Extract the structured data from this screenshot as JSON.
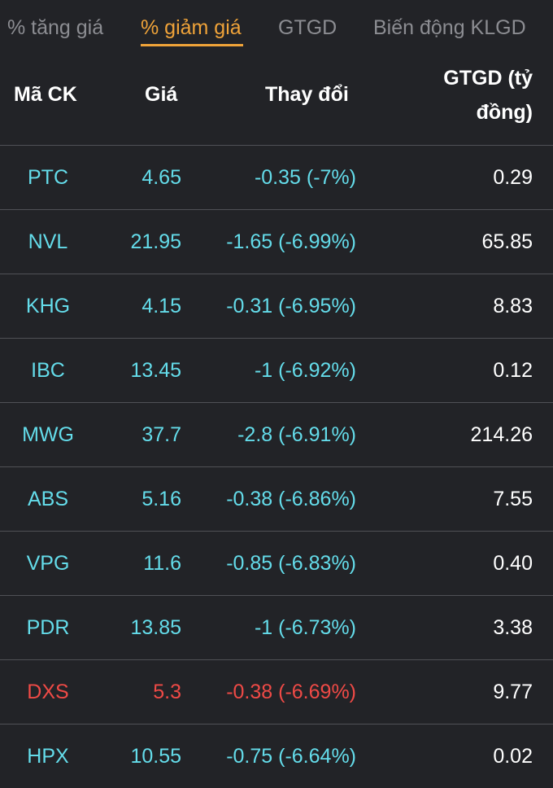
{
  "tabs": [
    {
      "label": "% tăng giá",
      "active": false
    },
    {
      "label": "% giảm giá",
      "active": true
    },
    {
      "label": "GTGD",
      "active": false
    },
    {
      "label": "Biến động KLGD",
      "active": false
    }
  ],
  "columns": {
    "symbol": "Mã CK",
    "price": "Giá",
    "change": "Thay đổi",
    "value_line1": "GTGD (tỷ",
    "value_line2": "đồng)"
  },
  "colors": {
    "accent": "#f0a339",
    "floor": "#64dcea",
    "down": "#ef4a46",
    "text": "#ffffff",
    "muted": "#8c8d92",
    "background": "#222327",
    "divider": "#505156"
  },
  "rows": [
    {
      "symbol": "PTC",
      "price": "4.65",
      "change": "-0.35 (-7%)",
      "value": "0.29",
      "status": "floor"
    },
    {
      "symbol": "NVL",
      "price": "21.95",
      "change": "-1.65 (-6.99%)",
      "value": "65.85",
      "status": "floor"
    },
    {
      "symbol": "KHG",
      "price": "4.15",
      "change": "-0.31 (-6.95%)",
      "value": "8.83",
      "status": "floor"
    },
    {
      "symbol": "IBC",
      "price": "13.45",
      "change": "-1 (-6.92%)",
      "value": "0.12",
      "status": "floor"
    },
    {
      "symbol": "MWG",
      "price": "37.7",
      "change": "-2.8 (-6.91%)",
      "value": "214.26",
      "status": "floor"
    },
    {
      "symbol": "ABS",
      "price": "5.16",
      "change": "-0.38 (-6.86%)",
      "value": "7.55",
      "status": "floor"
    },
    {
      "symbol": "VPG",
      "price": "11.6",
      "change": "-0.85 (-6.83%)",
      "value": "0.40",
      "status": "floor"
    },
    {
      "symbol": "PDR",
      "price": "13.85",
      "change": "-1 (-6.73%)",
      "value": "3.38",
      "status": "floor"
    },
    {
      "symbol": "DXS",
      "price": "5.3",
      "change": "-0.38 (-6.69%)",
      "value": "9.77",
      "status": "down"
    },
    {
      "symbol": "HPX",
      "price": "10.55",
      "change": "-0.75 (-6.64%)",
      "value": "0.02",
      "status": "floor"
    }
  ]
}
